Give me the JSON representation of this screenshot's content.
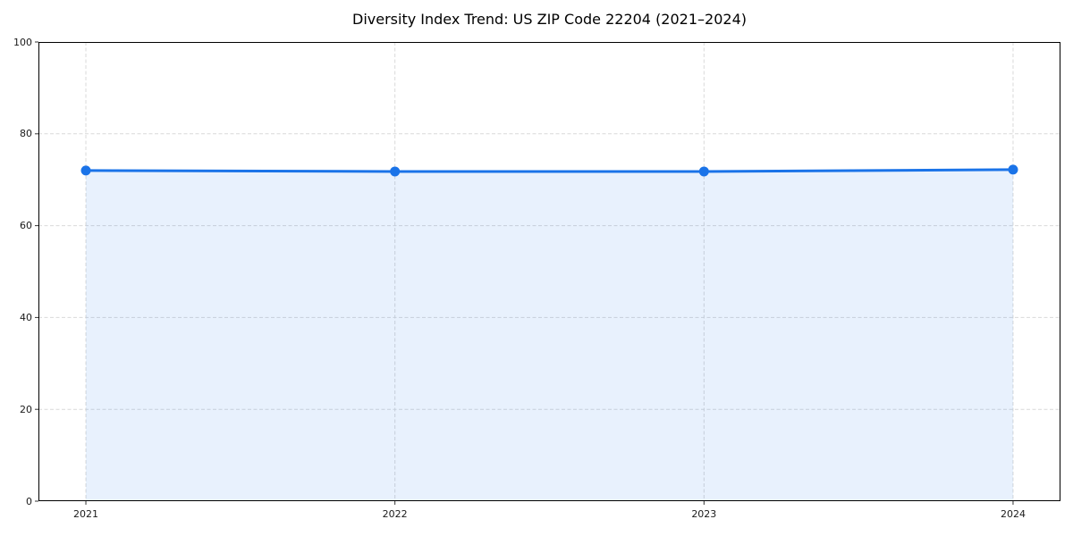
{
  "chart_data": {
    "type": "line",
    "title": "Diversity Index Trend: US ZIP Code 22204 (2021–2024)",
    "categories": [
      "2021",
      "2022",
      "2023",
      "2024"
    ],
    "series": [
      {
        "name": "Diversity Index",
        "values": [
          72.0,
          71.8,
          71.8,
          72.2
        ]
      }
    ],
    "xlabel": "",
    "ylabel": "",
    "ylim": [
      0,
      100
    ],
    "yticks": [
      0,
      20,
      40,
      60,
      80,
      100
    ],
    "grid": true,
    "grid_style": "dashed",
    "legend": "none",
    "area_fill": true,
    "colors": {
      "line": "#1a73e8",
      "marker": "#1a73e8",
      "fill": "rgba(26,115,232,0.10)",
      "grid": "#d9d9d9",
      "spine": "#000000",
      "tick": "#333333",
      "title_text": "#000000",
      "tick_text": "#1a1a1a"
    }
  }
}
